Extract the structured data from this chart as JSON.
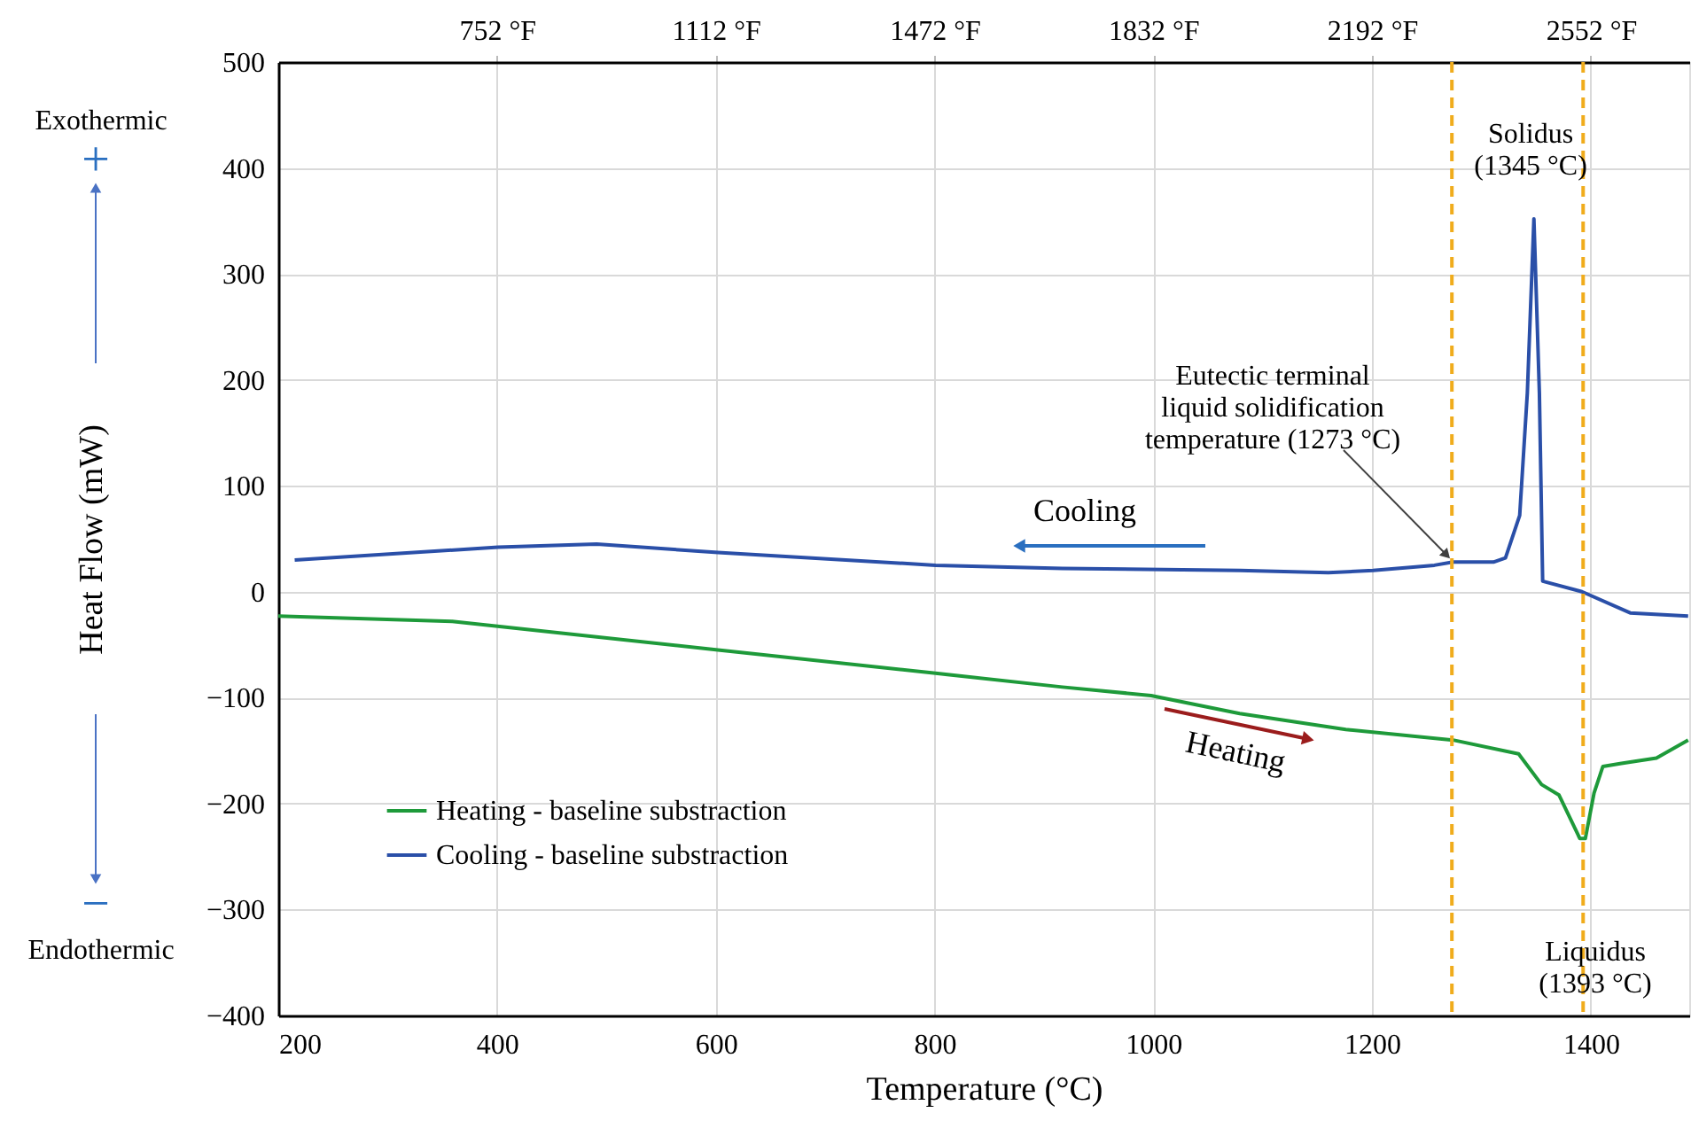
{
  "chart_data": {
    "type": "line",
    "xlabel": "Temperature (°C)",
    "ylabel": "Heat Flow (mW)",
    "xlim": [
      200,
      1490
    ],
    "xticks": [
      200,
      400,
      600,
      800,
      1000,
      1200,
      1400
    ],
    "ylim": [
      -400,
      500
    ],
    "yticks": [
      -400,
      -300,
      -200,
      -100,
      0,
      100,
      200,
      300,
      400,
      500
    ],
    "x2lim": [
      392,
      2714
    ],
    "x2ticks": [
      {
        "value": 752,
        "label": "752 °F"
      },
      {
        "value": 1112,
        "label": "1112 °F"
      },
      {
        "value": 1472,
        "label": "1472 °F"
      },
      {
        "value": 1832,
        "label": "1832 °F"
      },
      {
        "value": 2192,
        "label": "2192 °F"
      },
      {
        "value": 2552,
        "label": "2552 °F"
      }
    ],
    "grid": true,
    "legend": "bottom left",
    "marker": "none",
    "line_style": "solid",
    "series": [
      {
        "name": "Heating - baseline substraction",
        "color": "#1e9a3a",
        "x": [
          200,
          359,
          602,
          801,
          917,
          998,
          1079,
          1176,
          1274,
          1334,
          1355,
          1371,
          1390,
          1395,
          1403,
          1411,
          1428,
          1460,
          1489
        ],
        "values": [
          -23,
          -28,
          -55,
          -77,
          -90,
          -98,
          -115,
          -130,
          -140,
          -153,
          -182,
          -192,
          -233,
          -233,
          -190,
          -165,
          -162,
          -157,
          -140
        ]
      },
      {
        "name": "Cooling - baseline substraction",
        "color": "#2a4fa8",
        "x": [
          215,
          401,
          491,
          602,
          801,
          917,
          1079,
          1160,
          1201,
          1257,
          1274,
          1311,
          1322,
          1335,
          1342,
          1348,
          1353,
          1356,
          1392,
          1436,
          1489
        ],
        "values": [
          30,
          42,
          45,
          37,
          25,
          22,
          20,
          18,
          20,
          25,
          28,
          28,
          32,
          72,
          188,
          352,
          188,
          10,
          0,
          -20,
          -23
        ]
      }
    ],
    "ref_lines": [
      {
        "axis": "x",
        "value": 1273,
        "label": "Eutectic terminal\nliquid solidification\ntemperature (1273 °C)",
        "color": "#f0ac1c",
        "line_style": "dashed"
      },
      {
        "axis": "x",
        "value": 1393,
        "label": "Liquidus\n(1393 °C)",
        "color": "#f0ac1c",
        "line_style": "dashed"
      }
    ],
    "annotations": [
      "Exothermic",
      "+",
      "−",
      "Endothermic",
      "Cooling",
      "Heating",
      {
        "text": "Solidus\n(1345 °C)",
        "x": 1345,
        "y": 352
      }
    ]
  }
}
